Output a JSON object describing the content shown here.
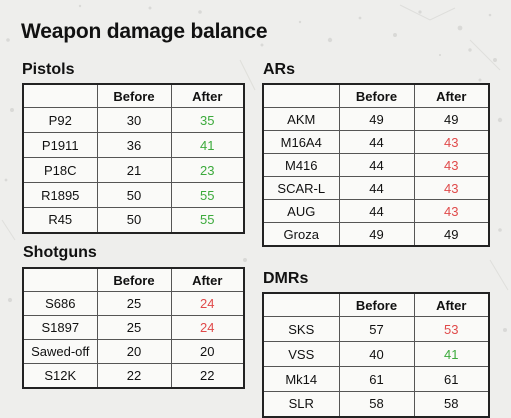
{
  "title": "Weapon damage balance",
  "headers": {
    "before": "Before",
    "after": "After"
  },
  "colors": {
    "buff": "#3caa3c",
    "nerf": "#e04a4a",
    "neutral": "#111111"
  },
  "sections": {
    "pistols": {
      "title": "Pistols",
      "rows": [
        {
          "name": "P92",
          "before": "30",
          "after": "35",
          "change": "buff"
        },
        {
          "name": "P1911",
          "before": "36",
          "after": "41",
          "change": "buff"
        },
        {
          "name": "P18C",
          "before": "21",
          "after": "23",
          "change": "buff"
        },
        {
          "name": "R1895",
          "before": "50",
          "after": "55",
          "change": "buff"
        },
        {
          "name": "R45",
          "before": "50",
          "after": "55",
          "change": "buff"
        }
      ]
    },
    "ars": {
      "title": "ARs",
      "rows": [
        {
          "name": "AKM",
          "before": "49",
          "after": "49",
          "change": "same"
        },
        {
          "name": "M16A4",
          "before": "44",
          "after": "43",
          "change": "nerf"
        },
        {
          "name": "M416",
          "before": "44",
          "after": "43",
          "change": "nerf"
        },
        {
          "name": "SCAR-L",
          "before": "44",
          "after": "43",
          "change": "nerf"
        },
        {
          "name": "AUG",
          "before": "44",
          "after": "43",
          "change": "nerf"
        },
        {
          "name": "Groza",
          "before": "49",
          "after": "49",
          "change": "same"
        }
      ]
    },
    "shotguns": {
      "title": "Shotguns",
      "rows": [
        {
          "name": "S686",
          "before": "25",
          "after": "24",
          "change": "nerf"
        },
        {
          "name": "S1897",
          "before": "25",
          "after": "24",
          "change": "nerf"
        },
        {
          "name": "Sawed-off",
          "before": "20",
          "after": "20",
          "change": "same"
        },
        {
          "name": "S12K",
          "before": "22",
          "after": "22",
          "change": "same"
        }
      ]
    },
    "dmrs": {
      "title": "DMRs",
      "rows": [
        {
          "name": "SKS",
          "before": "57",
          "after": "53",
          "change": "nerf"
        },
        {
          "name": "VSS",
          "before": "40",
          "after": "41",
          "change": "buff"
        },
        {
          "name": "Mk14",
          "before": "61",
          "after": "61",
          "change": "same"
        },
        {
          "name": "SLR",
          "before": "58",
          "after": "58",
          "change": "same"
        }
      ]
    }
  }
}
